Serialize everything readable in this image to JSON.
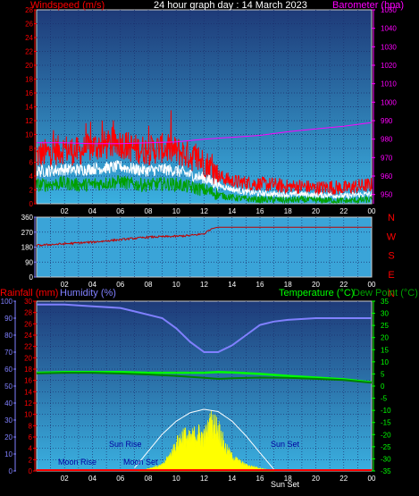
{
  "title": "24 hour graph day : 14 March 2023",
  "colors": {
    "background": "#000000",
    "grid": "#1e3c8c",
    "wind_speed": "#ff0000",
    "wind_avg": "#ffffff",
    "wind_low": "#00a000",
    "barometer": "#ff00ff",
    "direction": "#c00000",
    "humidity": "#8080ff",
    "temperature": "#00ff00",
    "dew_point": "#008000",
    "solar": "#ffff00",
    "sun_path": "#ffffff",
    "rain": "#ff0000"
  },
  "x_ticks": [
    "02",
    "04",
    "06",
    "08",
    "10",
    "12",
    "14",
    "16",
    "18",
    "20",
    "22",
    "00"
  ],
  "chart_data": [
    {
      "type": "line",
      "name": "wind-barometer",
      "left_axis_label": "Windspeed (m/s)",
      "right_axis_label": "Barometer (hpa)",
      "left_ticks": [
        "0",
        "2",
        "4",
        "6",
        "8",
        "10",
        "12",
        "14",
        "16",
        "18",
        "20",
        "22",
        "24",
        "26",
        "28"
      ],
      "right_ticks": [
        "950",
        "960",
        "970",
        "980",
        "990",
        "1000",
        "1010",
        "1020",
        "1030",
        "1040",
        "1050"
      ],
      "ylim_left": [
        0,
        28
      ],
      "ylim_right": [
        945,
        1050
      ],
      "xlim_hours": [
        0,
        24
      ],
      "series": [
        {
          "key": "gust",
          "x": [
            0,
            1,
            2,
            3,
            4,
            5,
            6,
            7,
            8,
            9,
            10,
            11,
            12,
            13,
            14,
            15,
            16,
            17,
            18,
            19,
            20,
            21,
            22,
            23,
            24
          ],
          "y": [
            6.5,
            7.0,
            7.5,
            7.0,
            7.8,
            8.0,
            8.3,
            7.5,
            7.3,
            7.6,
            7.2,
            6.5,
            5.5,
            3.8,
            3.0,
            2.8,
            2.6,
            2.5,
            2.2,
            2.3,
            2.0,
            2.2,
            2.0,
            2.3,
            2.5
          ]
        },
        {
          "key": "average",
          "x": [
            0,
            1,
            2,
            3,
            4,
            5,
            6,
            7,
            8,
            9,
            10,
            11,
            12,
            13,
            14,
            15,
            16,
            17,
            18,
            19,
            20,
            21,
            22,
            23,
            24
          ],
          "y": [
            4.5,
            4.6,
            4.8,
            4.7,
            4.9,
            5.0,
            5.2,
            4.8,
            4.6,
            4.8,
            4.6,
            4.0,
            3.5,
            2.6,
            2.0,
            1.6,
            1.4,
            1.3,
            1.2,
            1.3,
            1.1,
            1.2,
            1.0,
            1.2,
            1.3
          ]
        },
        {
          "key": "lull",
          "x": [
            0,
            1,
            2,
            3,
            4,
            5,
            6,
            7,
            8,
            9,
            10,
            11,
            12,
            13,
            14,
            15,
            16,
            17,
            18,
            19,
            20,
            21,
            22,
            23,
            24
          ],
          "y": [
            2.5,
            2.6,
            2.8,
            2.5,
            2.6,
            2.8,
            3.0,
            2.6,
            2.5,
            2.7,
            2.6,
            2.2,
            1.8,
            1.2,
            0.8,
            0.6,
            0.5,
            0.5,
            0.4,
            0.5,
            0.4,
            0.4,
            0.3,
            0.4,
            0.5
          ]
        },
        {
          "key": "barometer",
          "x": [
            0,
            2,
            4,
            6,
            8,
            10,
            12,
            14,
            16,
            18,
            20,
            22,
            24
          ],
          "y": [
            978,
            978,
            977.5,
            977.5,
            978,
            978.5,
            980,
            981,
            982,
            984,
            985.5,
            987,
            989
          ]
        }
      ]
    },
    {
      "type": "line",
      "name": "wind-direction",
      "left_ticks": [
        "0",
        "90",
        "180",
        "270",
        "360"
      ],
      "right_labels": [
        "N",
        "W",
        "S",
        "E",
        "N"
      ],
      "ylim": [
        0,
        360
      ],
      "xlim_hours": [
        0,
        24
      ],
      "series": [
        {
          "key": "direction",
          "x": [
            0,
            2,
            4,
            6,
            8,
            10,
            11,
            12,
            12.5,
            13,
            14,
            16,
            18,
            20,
            22,
            24
          ],
          "y": [
            190,
            200,
            210,
            225,
            240,
            245,
            250,
            260,
            290,
            300,
            300,
            300,
            300,
            300,
            300,
            300
          ]
        }
      ]
    },
    {
      "type": "line",
      "name": "temperature-humidity-rain",
      "rain_axis_label": "Rainfall (mm)",
      "humidity_axis_label": "Humidity (%)",
      "temperature_axis_label": "Temperature (°C)",
      "dewpoint_axis_label": "Dew Point (°C)",
      "humidity_ticks": [
        "0",
        "10",
        "20",
        "30",
        "40",
        "50",
        "60",
        "70",
        "80",
        "90",
        "100"
      ],
      "rain_ticks": [
        "0",
        "2",
        "4",
        "6",
        "8",
        "10",
        "12",
        "14",
        "16",
        "18",
        "20",
        "22",
        "24",
        "26",
        "28",
        "30"
      ],
      "temp_ticks": [
        "-35",
        "-30",
        "-25",
        "-20",
        "-15",
        "-10",
        "-5",
        "0",
        "5",
        "10",
        "15",
        "20",
        "25",
        "30",
        "35"
      ],
      "ylim_humidity": [
        0,
        100
      ],
      "ylim_rain": [
        0,
        30
      ],
      "ylim_temp": [
        -35,
        35
      ],
      "xlim_hours": [
        0,
        24
      ],
      "annotations": {
        "moon_rise": "Moon Rise",
        "moon_set": "Moon Set",
        "sun_rise": "Sun Rise",
        "sun_set": "Sun Set",
        "sun_set_2": "Sun Set"
      },
      "series": [
        {
          "key": "humidity",
          "x": [
            0,
            2,
            4,
            6,
            7,
            8,
            9,
            10,
            11,
            12,
            13,
            14,
            15,
            16,
            17,
            18,
            20,
            22,
            24
          ],
          "y": [
            98,
            98,
            97,
            96,
            94,
            92,
            90,
            84,
            76,
            70,
            70,
            74,
            80,
            86,
            88,
            89,
            90,
            90,
            90
          ]
        },
        {
          "key": "temperature",
          "x": [
            0,
            2,
            4,
            6,
            8,
            10,
            12,
            13,
            14,
            16,
            18,
            20,
            22,
            24
          ],
          "y": [
            5.5,
            5.8,
            5.8,
            5.8,
            5.5,
            5.5,
            5.5,
            5.8,
            5.6,
            5.0,
            4.2,
            3.5,
            2.8,
            1.6
          ]
        },
        {
          "key": "dew_point",
          "x": [
            0,
            2,
            4,
            6,
            8,
            10,
            12,
            13,
            14,
            16,
            18,
            20,
            22,
            24
          ],
          "y": [
            5.2,
            5.5,
            5.5,
            5.2,
            4.8,
            4.2,
            3.4,
            3.0,
            3.2,
            3.5,
            3.4,
            3.0,
            2.5,
            1.4
          ]
        },
        {
          "key": "solar",
          "x": [
            7.3,
            8,
            9,
            9.5,
            10,
            10.5,
            11,
            11.5,
            12,
            12.5,
            13,
            13.5,
            14,
            14.5,
            15,
            16,
            16.5,
            17
          ],
          "y": [
            0,
            0.5,
            1.2,
            3.0,
            5.5,
            7.5,
            6.5,
            8.0,
            7.0,
            10.0,
            9.0,
            5.0,
            3.0,
            2.0,
            1.2,
            0.6,
            0.3,
            0
          ]
        },
        {
          "key": "sun_path",
          "x": [
            7,
            8,
            9,
            10,
            11,
            12,
            13,
            14,
            15,
            16,
            17
          ],
          "y": [
            0.5,
            3.5,
            6.5,
            8.8,
            10.3,
            10.9,
            10.5,
            8.8,
            6.2,
            3.2,
            0.3
          ]
        }
      ]
    }
  ]
}
